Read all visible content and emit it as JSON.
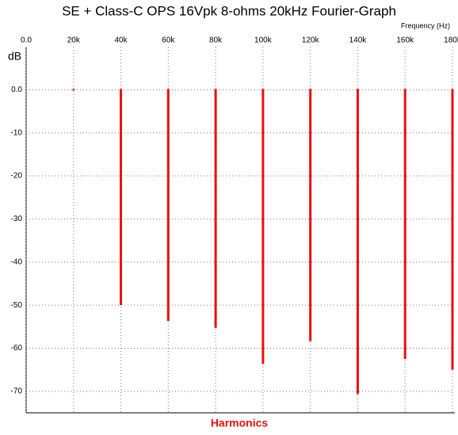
{
  "chart_data": {
    "type": "stem",
    "title": "SE + Class-C OPS 16Vpk 8-ohms 20kHz Fourier-Graph",
    "x_label": "Frequency  (Hz)",
    "y_label": "dB",
    "annotation": "Harmonics",
    "x": [
      20000,
      40000,
      60000,
      80000,
      100000,
      120000,
      140000,
      160000,
      180000
    ],
    "values": [
      0,
      -49.8,
      -53.5,
      -55.1,
      -63.4,
      -58.2,
      -70.5,
      -62.3,
      -64.8
    ],
    "color": "#e81010",
    "xlim": [
      0,
      180000
    ],
    "xticks": [
      {
        "value": 0,
        "label": "0.0"
      },
      {
        "value": 20000,
        "label": "20k"
      },
      {
        "value": 40000,
        "label": "40k"
      },
      {
        "value": 60000,
        "label": "60k"
      },
      {
        "value": 80000,
        "label": "80k"
      },
      {
        "value": 100000,
        "label": "100k"
      },
      {
        "value": 120000,
        "label": "120k"
      },
      {
        "value": 140000,
        "label": "140k"
      },
      {
        "value": 160000,
        "label": "160k"
      },
      {
        "value": 180000,
        "label": "180k"
      }
    ],
    "ylim": [
      -75,
      10
    ],
    "yticks": [
      {
        "value": 0,
        "label": "0.0"
      },
      -10,
      -20,
      -30,
      -40,
      -50,
      -60,
      -70
    ],
    "grid": true
  }
}
